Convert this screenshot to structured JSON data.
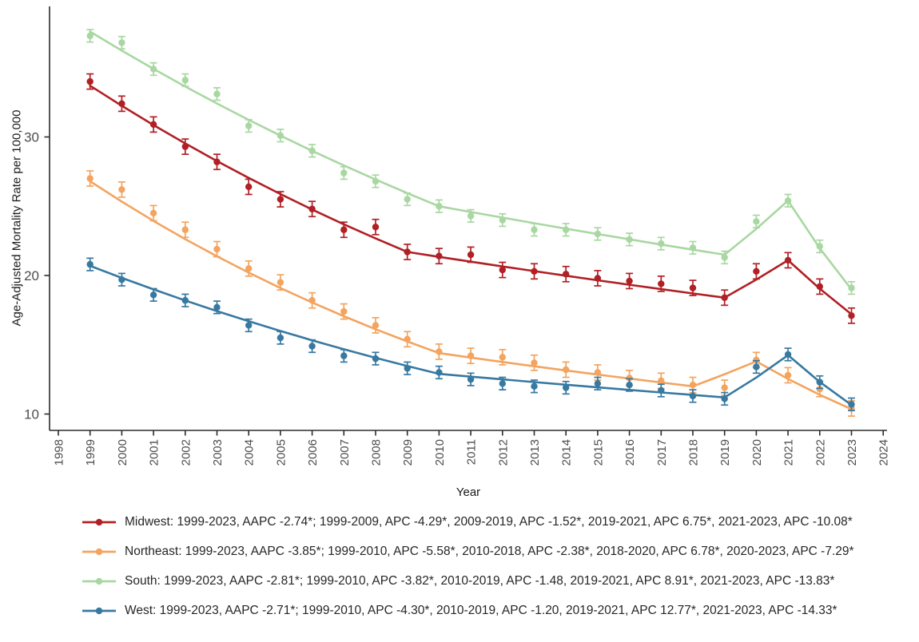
{
  "chart_data": {
    "type": "line",
    "title": "",
    "xlabel": "Year",
    "ylabel": "Age-Adjusted Mortality Rate per 100,000",
    "x_ticks": [
      1998,
      1999,
      2000,
      2001,
      2002,
      2003,
      2004,
      2005,
      2006,
      2007,
      2008,
      2009,
      2010,
      2011,
      2012,
      2013,
      2014,
      2015,
      2016,
      2017,
      2018,
      2019,
      2020,
      2021,
      2022,
      2023,
      2024
    ],
    "y_ticks": [
      10,
      20,
      30
    ],
    "xlim": [
      1997.7,
      2024.6
    ],
    "ylim": [
      9.6,
      39.3
    ],
    "grid": false,
    "legend_position": "bottom-left",
    "error_bars": true,
    "axis_color": "#2b2b2b",
    "tick_label_color": "#4d4d4d",
    "years": [
      1999,
      2000,
      2001,
      2002,
      2003,
      2004,
      2005,
      2006,
      2007,
      2008,
      2009,
      2010,
      2011,
      2012,
      2013,
      2014,
      2015,
      2016,
      2017,
      2018,
      2019,
      2020,
      2021,
      2022,
      2023
    ],
    "series": [
      {
        "name": "Midwest",
        "color": "#b02025",
        "point_values": [
          34.0,
          32.4,
          30.9,
          29.3,
          28.2,
          26.4,
          25.5,
          24.8,
          23.3,
          23.5,
          21.7,
          21.4,
          21.5,
          20.4,
          20.3,
          20.1,
          19.8,
          19.6,
          19.4,
          19.1,
          18.4,
          20.3,
          21.1,
          19.2,
          17.1
        ],
        "ci_half_width": 0.55,
        "trend_anchors": [
          [
            1999,
            33.7
          ],
          [
            2009,
            21.7
          ],
          [
            2019,
            18.4
          ],
          [
            2021,
            21.1
          ],
          [
            2023,
            17.2
          ]
        ],
        "legend_label": "Midwest: 1999-2023, AAPC -2.74*; 1999-2009, APC -4.29*, 2009-2019, APC -1.52*, 2019-2021, APC 6.75*, 2021-2023, APC -10.08*"
      },
      {
        "name": "Northeast",
        "color": "#f3a45f",
        "point_values": [
          27.0,
          26.2,
          24.5,
          23.3,
          21.9,
          20.5,
          19.5,
          18.2,
          17.4,
          16.4,
          15.4,
          14.5,
          14.2,
          14.1,
          13.7,
          13.2,
          13.0,
          12.6,
          12.4,
          12.1,
          11.9,
          13.9,
          12.8,
          11.8,
          10.4
        ],
        "ci_half_width": 0.55,
        "trend_anchors": [
          [
            1999,
            26.8
          ],
          [
            2010,
            14.4
          ],
          [
            2018,
            12.0
          ],
          [
            2020,
            13.8
          ],
          [
            2023,
            10.35
          ]
        ],
        "legend_label": "Northeast: 1999-2023, AAPC -3.85*; 1999-2010, APC -5.58*, 2010-2018, APC -2.38*, 2018-2020, APC 6.78*, 2020-2023, APC -7.29*"
      },
      {
        "name": "South",
        "color": "#a9d7a2",
        "point_values": [
          37.3,
          36.8,
          34.9,
          34.1,
          33.1,
          30.8,
          30.1,
          29.0,
          27.4,
          26.8,
          25.5,
          25.0,
          24.3,
          24.0,
          23.3,
          23.3,
          23.0,
          22.6,
          22.3,
          22.0,
          21.3,
          23.9,
          25.4,
          22.1,
          19.1
        ],
        "ci_half_width": 0.45,
        "trend_anchors": [
          [
            1999,
            37.6
          ],
          [
            2010,
            25.0
          ],
          [
            2019,
            21.5
          ],
          [
            2021,
            25.4
          ],
          [
            2023,
            19.0
          ]
        ],
        "legend_label": "South: 1999-2023, AAPC -2.81*; 1999-2010, APC -3.82*, 2010-2019, APC -1.48, 2019-2021, APC 8.91*, 2021-2023, APC -13.83*"
      },
      {
        "name": "West",
        "color": "#3779a1",
        "point_values": [
          20.8,
          19.7,
          18.6,
          18.2,
          17.7,
          16.4,
          15.5,
          14.9,
          14.2,
          14.0,
          13.3,
          13.0,
          12.5,
          12.2,
          12.0,
          11.9,
          12.2,
          12.1,
          11.7,
          11.3,
          11.1,
          13.4,
          14.3,
          12.3,
          10.7
        ],
        "ci_half_width": 0.45,
        "trend_anchors": [
          [
            1999,
            20.7
          ],
          [
            2010,
            12.9
          ],
          [
            2019,
            11.2
          ],
          [
            2021,
            14.25
          ],
          [
            2023,
            10.65
          ]
        ],
        "legend_label": "West: 1999-2023, AAPC -2.71*; 1999-2010, APC -4.30*, 2010-2019, APC -1.20, 2019-2021, APC 12.77*, 2021-2023, APC -14.33*"
      }
    ]
  }
}
